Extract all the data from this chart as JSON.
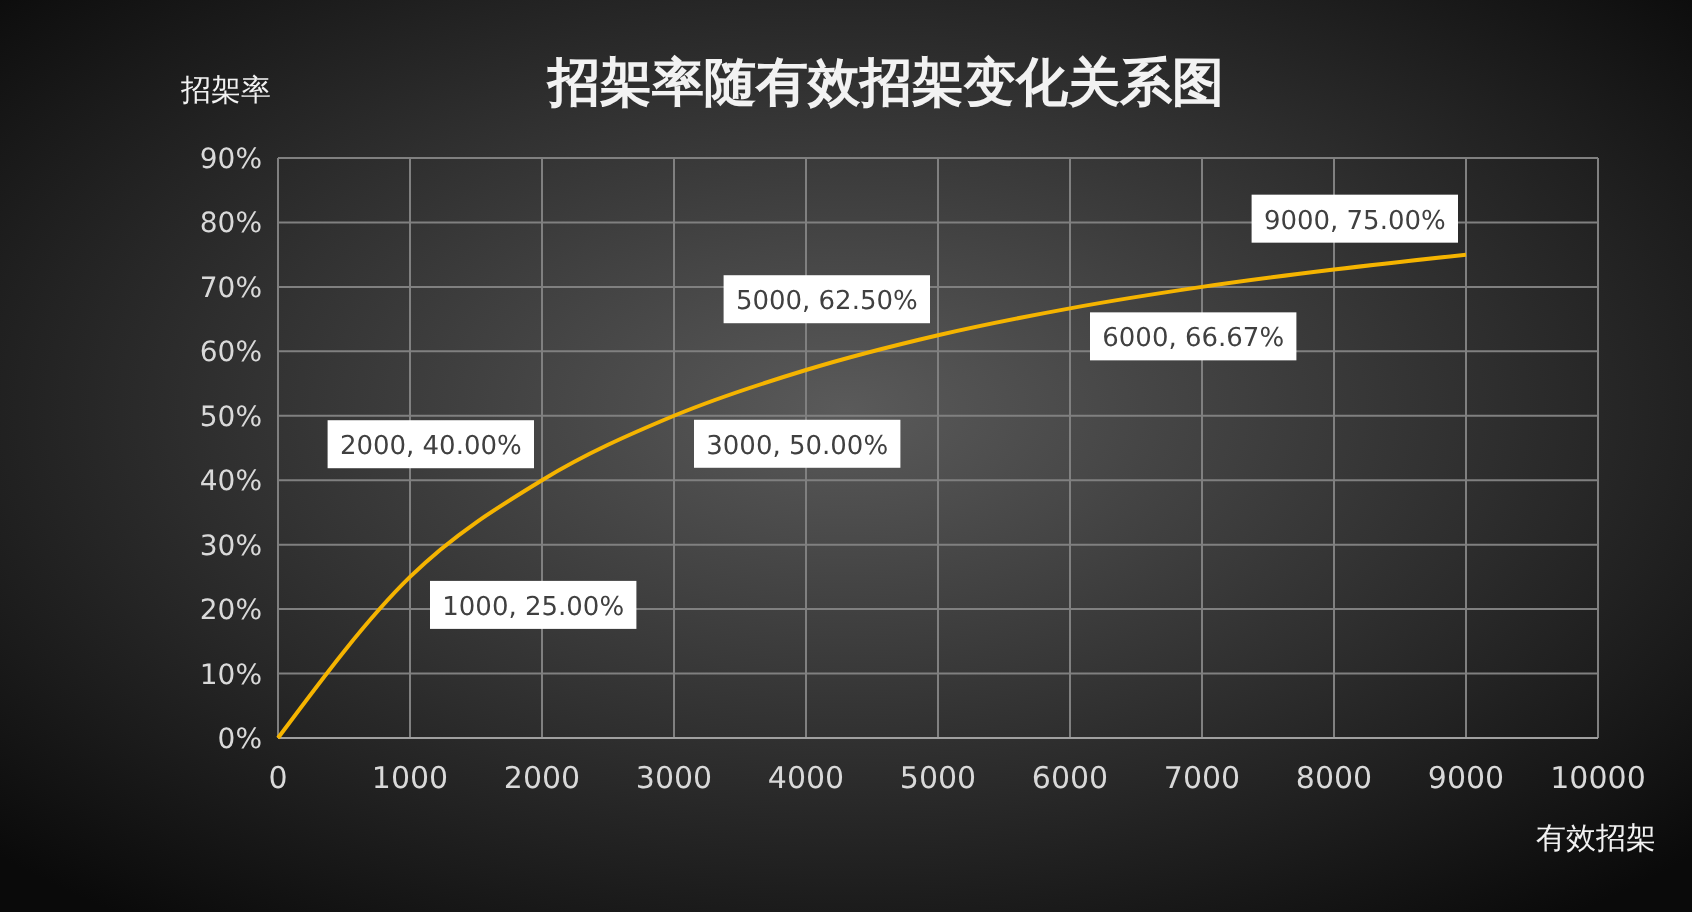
{
  "chart_data": {
    "type": "line",
    "title": "招架率随有效招架变化关系图",
    "xlabel": "有效招架",
    "ylabel": "招架率",
    "x": [
      0,
      1000,
      2000,
      3000,
      4000,
      5000,
      6000,
      7000,
      8000,
      9000
    ],
    "series": [
      {
        "color": "#f5b400",
        "values": [
          0,
          25,
          40,
          50,
          57.1,
          62.5,
          66.67,
          70,
          72.7,
          75
        ],
        "value_labels": [
          null,
          "1000, 25.00%",
          "2000, 40.00%",
          "3000, 50.00%",
          null,
          "5000, 62.50%",
          "6000, 66.67%",
          null,
          null,
          "9000, 75.00%"
        ]
      }
    ],
    "xlim": [
      0,
      10000
    ],
    "xticks": [
      0,
      1000,
      2000,
      3000,
      4000,
      5000,
      6000,
      7000,
      8000,
      9000,
      10000
    ],
    "ylim": [
      0,
      90
    ],
    "yticks": [
      {
        "value": 0,
        "label": "0%"
      },
      {
        "value": 10,
        "label": "10%"
      },
      {
        "value": 20,
        "label": "20%"
      },
      {
        "value": 30,
        "label": "30%"
      },
      {
        "value": 40,
        "label": "40%"
      },
      {
        "value": 50,
        "label": "50%"
      },
      {
        "value": 60,
        "label": "60%"
      },
      {
        "value": 70,
        "label": "70%"
      },
      {
        "value": 80,
        "label": "80%"
      },
      {
        "value": 90,
        "label": "90%"
      }
    ],
    "grid": true,
    "marker": "none",
    "line_style": "solid"
  }
}
